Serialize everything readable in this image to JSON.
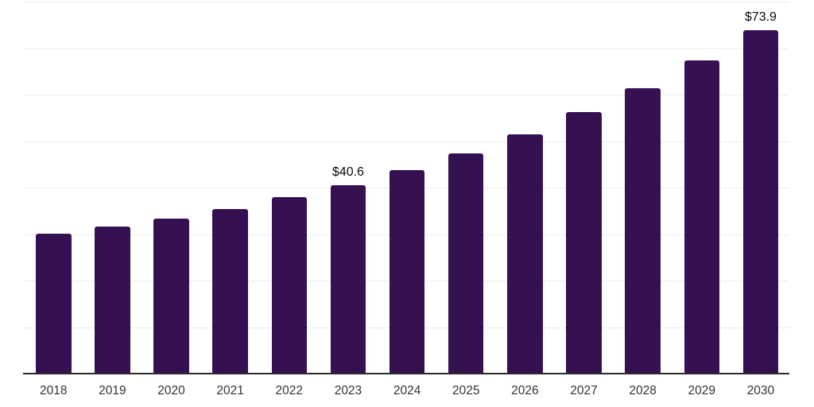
{
  "chart_data": {
    "type": "bar",
    "title": "",
    "xlabel": "",
    "ylabel": "",
    "categories": [
      "2018",
      "2019",
      "2020",
      "2021",
      "2022",
      "2023",
      "2024",
      "2025",
      "2026",
      "2027",
      "2028",
      "2029",
      "2030"
    ],
    "values": [
      30.1,
      31.7,
      33.4,
      35.4,
      38.0,
      40.6,
      43.7,
      47.4,
      51.4,
      56.2,
      61.3,
      67.4,
      73.9
    ],
    "point_labels": [
      "",
      "",
      "",
      "",
      "",
      "$40.6",
      "",
      "",
      "",
      "",
      "",
      "",
      "$73.9"
    ],
    "ylim": [
      0,
      80
    ],
    "gridline_step": 10,
    "grid": "horizontal-only",
    "legend": "none",
    "y_tick_labels_visible": false,
    "colors": {
      "bar": "#351151",
      "value_label": "#0a0a0a",
      "x_tick_label": "#333333",
      "gridline": "#ededed",
      "axis_line": "#2b2b2b",
      "background": "#ffffff"
    }
  }
}
